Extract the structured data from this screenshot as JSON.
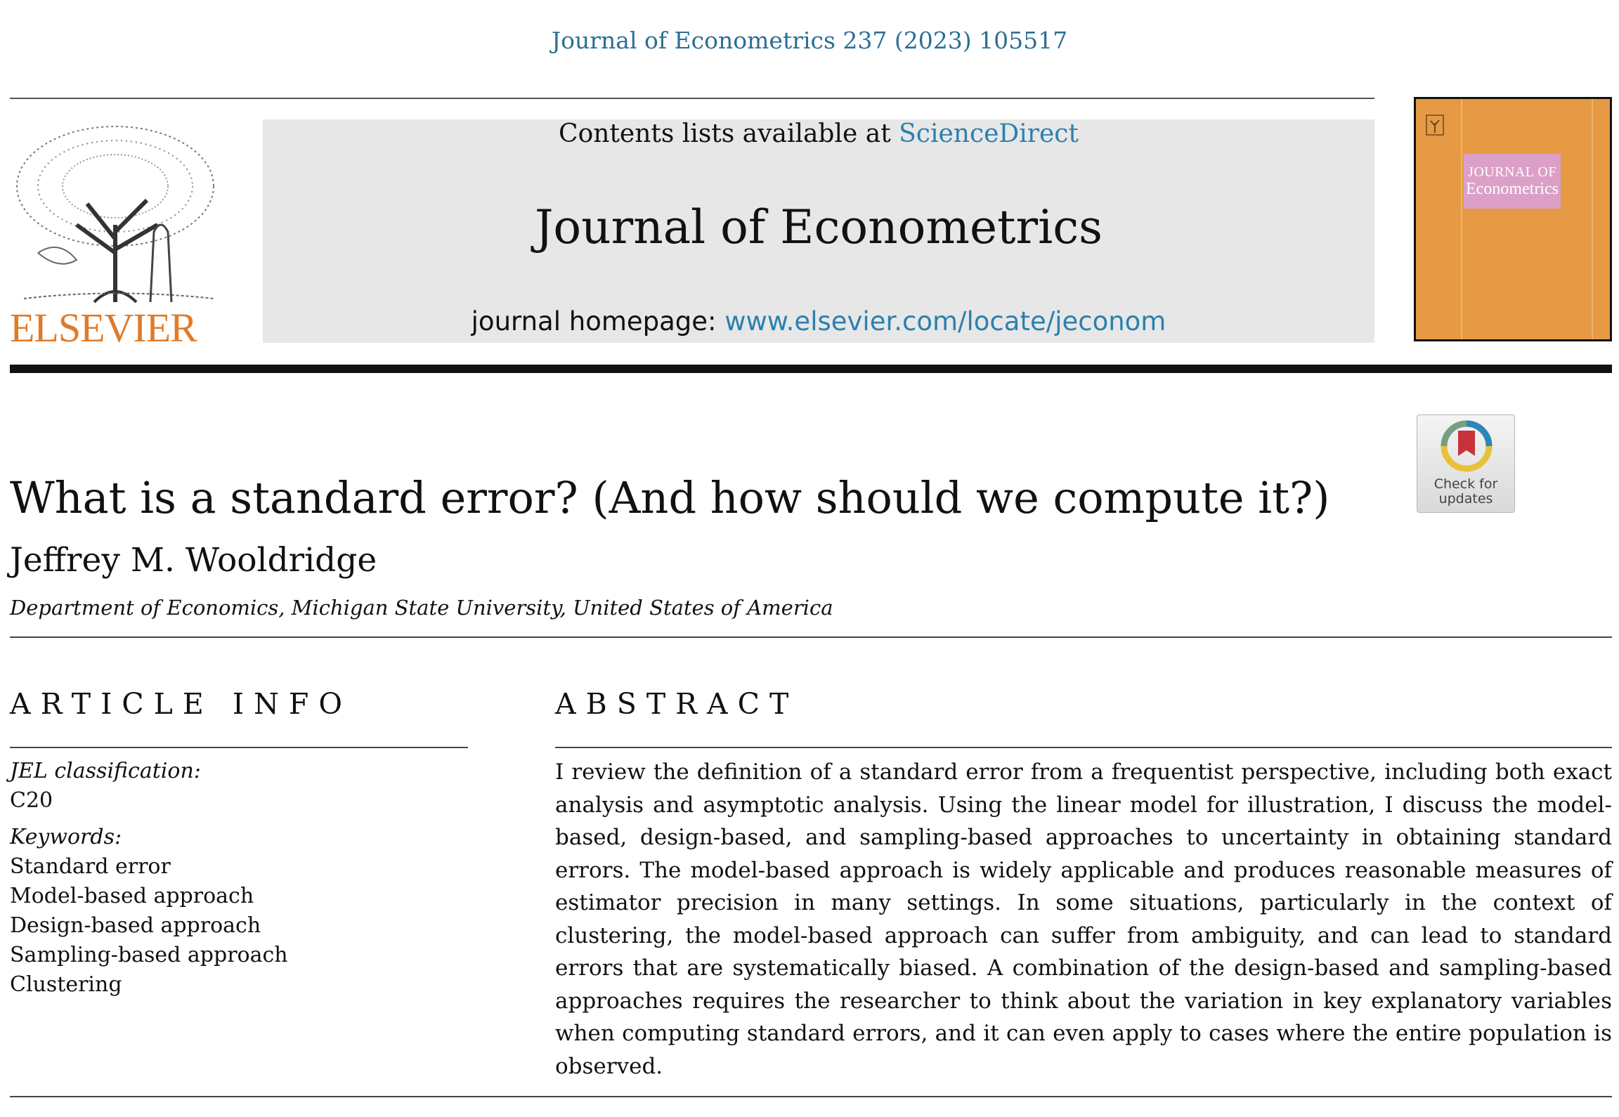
{
  "header": {
    "citation": "Journal of Econometrics 237 (2023) 105517",
    "publisher_logo_text": "ELSEVIER",
    "contents_prefix": "Contents lists available at ",
    "contents_link": "ScienceDirect",
    "journal_title": "Journal of Econometrics",
    "homepage_prefix": "journal homepage: ",
    "homepage_url": "www.elsevier.com/locate/jeconom",
    "cover_line1": "JOURNAL OF",
    "cover_line2": "Econometrics",
    "badge_line1": "Check for",
    "badge_line2": "updates"
  },
  "article": {
    "title": "What is a standard error? (And how should we compute it?)",
    "author": "Jeffrey M. Wooldridge",
    "affiliation": "Department of Economics, Michigan State University, United States of America"
  },
  "article_info": {
    "heading": "ARTICLE INFO",
    "jel_label": "JEL classification:",
    "jel_value": "C20",
    "keywords_label": "Keywords:",
    "keywords": [
      "Standard error",
      "Model-based approach",
      "Design-based approach",
      "Sampling-based approach",
      "Clustering"
    ]
  },
  "abstract": {
    "heading": "ABSTRACT",
    "text": "I review the definition of a standard error from a frequentist perspective, including both exact analysis and asymptotic analysis. Using the linear model for illustration, I discuss the model-based, design-based, and sampling-based approaches to uncertainty in obtaining standard errors. The model-based approach is widely applicable and produces reasonable measures of estimator precision in many settings. In some situations, particularly in the context of clustering, the model-based approach can suffer from ambiguity, and can lead to standard errors that are systematically biased. A combination of the design-based and sampling-based approaches requires the researcher to think about the variation in key explanatory variables when computing standard errors, and it can even apply to cases where the entire population is observed."
  },
  "colors": {
    "link_blue": "#2b80b0",
    "citation_blue": "#2b6f94",
    "elsevier_orange": "#e07b2a",
    "banner_gray": "#e7e7e7",
    "cover_orange": "#e59a43",
    "cover_plate_pink": "#dca0c8"
  }
}
